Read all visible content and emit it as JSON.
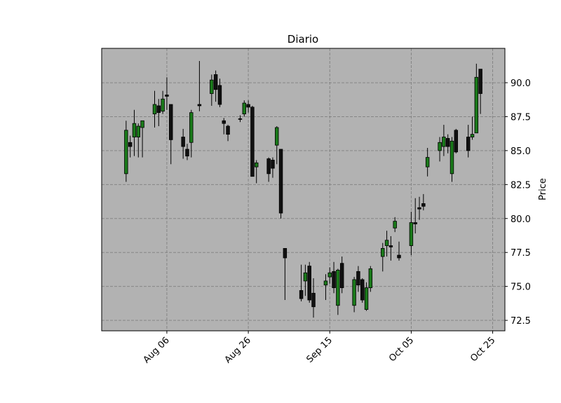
{
  "chart_data": {
    "type": "candlestick",
    "title": "Diario",
    "ylabel": "Price",
    "x": [
      "Jul 27",
      "Jul 28",
      "Jul 29",
      "Jul 30",
      "Jul 31",
      "Aug 03",
      "Aug 04",
      "Aug 05",
      "Aug 06",
      "Aug 07",
      "Aug 10",
      "Aug 11",
      "Aug 12",
      "Aug 14",
      "Aug 17",
      "Aug 18",
      "Aug 19",
      "Aug 20",
      "Aug 21",
      "Aug 24",
      "Aug 25",
      "Aug 26",
      "Aug 27",
      "Aug 28",
      "Aug 31",
      "Sep 01",
      "Sep 02",
      "Sep 03",
      "Sep 04",
      "Sep 08",
      "Sep 09",
      "Sep 10",
      "Sep 11",
      "Sep 14",
      "Sep 15",
      "Sep 16",
      "Sep 17",
      "Sep 18",
      "Sep 21",
      "Sep 22",
      "Sep 23",
      "Sep 24",
      "Sep 25",
      "Sep 28",
      "Sep 29",
      "Sep 30",
      "Oct 01",
      "Oct 02",
      "Oct 05",
      "Oct 06",
      "Oct 07",
      "Oct 08",
      "Oct 09",
      "Oct 12",
      "Oct 13",
      "Oct 14",
      "Oct 15",
      "Oct 16",
      "Oct 19",
      "Oct 20",
      "Oct 21",
      "Oct 22"
    ],
    "open": [
      83.3,
      85.6,
      86.0,
      86.0,
      86.7,
      87.7,
      88.3,
      87.9,
      89.1,
      88.4,
      86.0,
      85.1,
      85.6,
      88.4,
      89.2,
      90.6,
      89.8,
      87.2,
      86.8,
      87.35,
      87.7,
      88.4,
      88.2,
      83.8,
      84.4,
      84.3,
      85.4,
      85.1,
      77.8,
      74.7,
      75.4,
      76.5,
      74.5,
      75.1,
      75.7,
      76.1,
      73.6,
      76.7,
      73.6,
      76.1,
      75.5,
      73.3,
      74.9,
      77.2,
      78.0,
      78.0,
      79.3,
      77.3,
      78.0,
      79.7,
      80.8,
      81.1,
      83.8,
      85.0,
      85.3,
      85.9,
      83.3,
      86.5,
      86.0,
      86.0,
      86.3,
      91.0
    ],
    "high": [
      87.2,
      86.1,
      88.0,
      87.0,
      87.2,
      89.4,
      88.8,
      89.4,
      90.4,
      88.4,
      86.6,
      85.5,
      88.0,
      91.6,
      90.6,
      90.9,
      90.3,
      87.4,
      86.9,
      87.6,
      88.7,
      88.7,
      88.3,
      84.3,
      84.5,
      84.5,
      86.8,
      85.1,
      77.8,
      76.6,
      76.6,
      76.8,
      75.6,
      75.9,
      76.4,
      76.8,
      76.3,
      77.2,
      75.7,
      76.5,
      75.6,
      75.3,
      76.5,
      78.2,
      79.1,
      78.7,
      80.1,
      78.3,
      80.5,
      81.5,
      81.6,
      81.8,
      85.2,
      86.0,
      86.9,
      86.2,
      86.0,
      86.6,
      86.9,
      87.5,
      91.4,
      91.0
    ],
    "low": [
      82.7,
      84.5,
      84.6,
      84.5,
      84.5,
      86.7,
      86.8,
      87.7,
      88.0,
      84.0,
      84.4,
      84.3,
      84.5,
      87.9,
      88.3,
      88.6,
      88.2,
      86.2,
      85.7,
      87.1,
      87.5,
      87.8,
      83.1,
      82.6,
      82.7,
      83.0,
      84.0,
      80.0,
      74.0,
      73.9,
      74.3,
      73.8,
      72.7,
      74.0,
      75.2,
      74.5,
      72.9,
      74.5,
      73.1,
      74.6,
      73.8,
      73.2,
      74.6,
      76.1,
      77.2,
      76.9,
      79.0,
      76.9,
      77.3,
      78.9,
      79.9,
      80.6,
      83.1,
      84.2,
      84.6,
      84.8,
      82.7,
      84.8,
      84.5,
      85.8,
      86.3,
      87.7
    ],
    "close": [
      86.5,
      85.3,
      87.0,
      86.8,
      87.2,
      88.4,
      87.8,
      88.8,
      89.0,
      85.8,
      85.3,
      84.6,
      87.8,
      88.3,
      90.2,
      89.5,
      88.4,
      87.0,
      86.2,
      87.3,
      88.5,
      88.2,
      83.1,
      84.1,
      83.3,
      83.7,
      86.7,
      80.4,
      77.1,
      74.1,
      76.0,
      74.0,
      73.5,
      75.4,
      76.0,
      74.9,
      76.2,
      74.9,
      75.5,
      75.1,
      74.0,
      74.9,
      76.3,
      77.8,
      78.4,
      77.9,
      79.8,
      77.1,
      79.7,
      79.6,
      80.7,
      80.9,
      84.5,
      85.6,
      86.0,
      85.3,
      85.7,
      84.9,
      85.0,
      86.2,
      90.4,
      89.2
    ],
    "up_color": "#1a7a1a",
    "down_color": "#111111",
    "background": "#b2b2b2",
    "grid": true,
    "y_axis_side": "right",
    "xlim": [
      "Jul 21",
      "Oct 28"
    ],
    "xticks": [
      "Aug 06",
      "Aug 26",
      "Sep 15",
      "Oct 05",
      "Oct 25"
    ],
    "ylim": [
      71.73,
      92.53
    ],
    "yticks": [
      72.5,
      {
        "value": 75,
        "label": "75.0"
      },
      77.5,
      {
        "value": 80,
        "label": "80.0"
      },
      82.5,
      {
        "value": 85,
        "label": "85.0"
      },
      87.5,
      {
        "value": 90,
        "label": "90.0"
      }
    ]
  }
}
